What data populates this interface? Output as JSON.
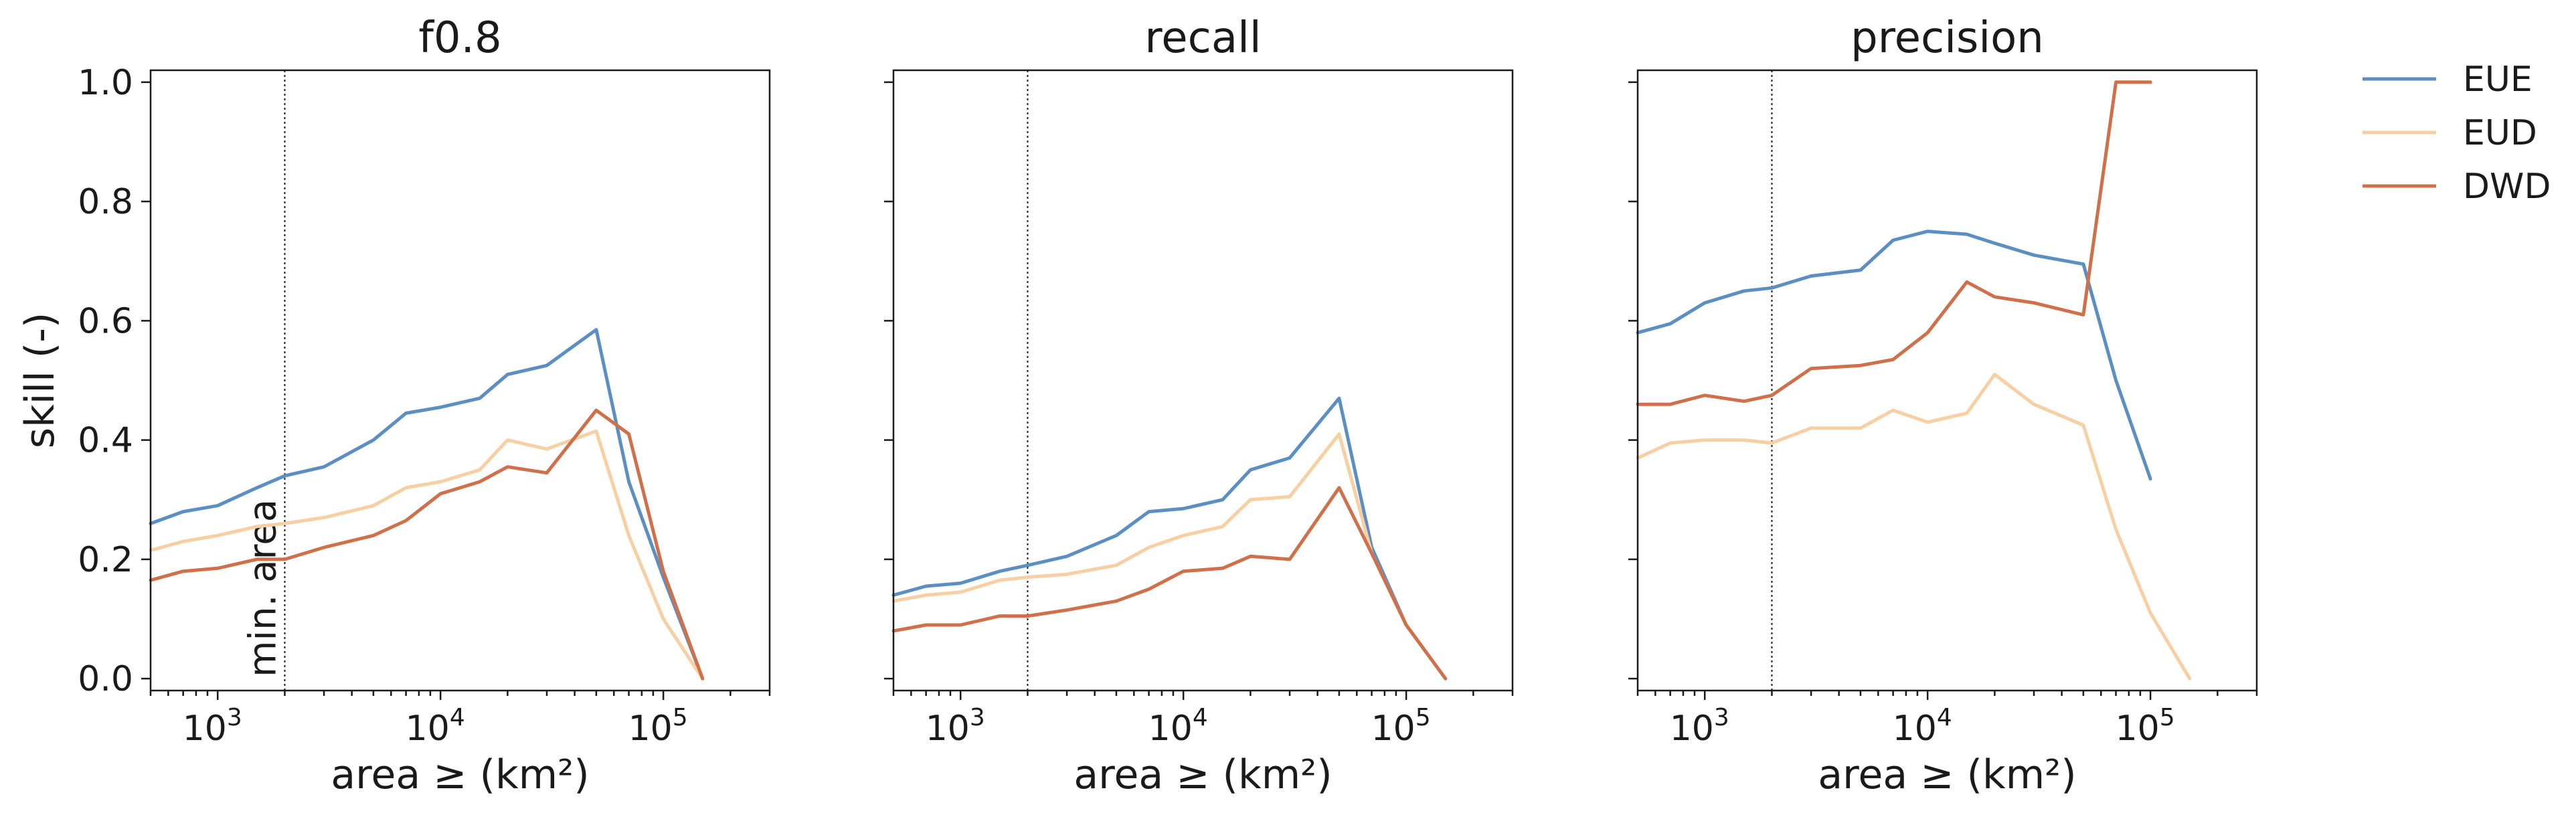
{
  "chart_data": [
    {
      "type": "line",
      "title": "f0.8",
      "xlabel": "area ≥ (km²)",
      "ylabel": "skill (-)",
      "xscale": "log",
      "xlim": [
        500,
        300000
      ],
      "ylim": [
        -0.02,
        1.02
      ],
      "yticks": [
        "0.0",
        "0.2",
        "0.4",
        "0.6",
        "0.8",
        "1.0"
      ],
      "xticks": [
        {
          "value": 1000,
          "base": "10",
          "exp": "3"
        },
        {
          "value": 10000,
          "base": "10",
          "exp": "4"
        },
        {
          "value": 100000,
          "base": "10",
          "exp": "5"
        }
      ],
      "vline": {
        "x": 2000,
        "label": "min. area"
      },
      "series": [
        {
          "name": "EUE",
          "color": "#5b8fc3",
          "x": [
            500,
            700,
            1000,
            1500,
            2000,
            3000,
            5000,
            7000,
            10000,
            15000,
            20000,
            30000,
            50000,
            70000,
            100000,
            150000
          ],
          "values": [
            0.26,
            0.28,
            0.29,
            0.32,
            0.34,
            0.355,
            0.4,
            0.445,
            0.455,
            0.47,
            0.51,
            0.525,
            0.585,
            0.33,
            0.17,
            0.0
          ]
        },
        {
          "name": "EUD",
          "color": "#f8cfa2",
          "x": [
            500,
            700,
            1000,
            1500,
            2000,
            3000,
            5000,
            7000,
            10000,
            15000,
            20000,
            30000,
            50000,
            70000,
            100000,
            150000
          ],
          "values": [
            0.215,
            0.23,
            0.24,
            0.255,
            0.26,
            0.27,
            0.29,
            0.32,
            0.33,
            0.35,
            0.4,
            0.385,
            0.415,
            0.24,
            0.1,
            0.0
          ]
        },
        {
          "name": "DWD",
          "color": "#d0704a",
          "x": [
            500,
            700,
            1000,
            1500,
            2000,
            3000,
            5000,
            7000,
            10000,
            15000,
            20000,
            30000,
            50000,
            70000,
            100000,
            150000
          ],
          "values": [
            0.165,
            0.18,
            0.185,
            0.2,
            0.2,
            0.22,
            0.24,
            0.265,
            0.31,
            0.33,
            0.355,
            0.345,
            0.45,
            0.41,
            0.18,
            0.0
          ]
        }
      ]
    },
    {
      "type": "line",
      "title": "recall",
      "xlabel": "area ≥ (km²)",
      "ylabel": "",
      "xscale": "log",
      "xlim": [
        500,
        300000
      ],
      "ylim": [
        -0.02,
        1.02
      ],
      "yticks": [
        "",
        "",
        "",
        "",
        "",
        ""
      ],
      "xticks": [
        {
          "value": 1000,
          "base": "10",
          "exp": "3"
        },
        {
          "value": 10000,
          "base": "10",
          "exp": "4"
        },
        {
          "value": 100000,
          "base": "10",
          "exp": "5"
        }
      ],
      "vline": {
        "x": 2000,
        "label": ""
      },
      "series": [
        {
          "name": "EUE",
          "color": "#5b8fc3",
          "x": [
            500,
            700,
            1000,
            1500,
            2000,
            3000,
            5000,
            7000,
            10000,
            15000,
            20000,
            30000,
            50000,
            70000,
            100000,
            150000
          ],
          "values": [
            0.14,
            0.155,
            0.16,
            0.18,
            0.19,
            0.205,
            0.24,
            0.28,
            0.285,
            0.3,
            0.35,
            0.37,
            0.47,
            0.22,
            0.09,
            0.0
          ]
        },
        {
          "name": "EUD",
          "color": "#f8cfa2",
          "x": [
            500,
            700,
            1000,
            1500,
            2000,
            3000,
            5000,
            7000,
            10000,
            15000,
            20000,
            30000,
            50000,
            70000,
            100000,
            150000
          ],
          "values": [
            0.13,
            0.14,
            0.145,
            0.165,
            0.17,
            0.175,
            0.19,
            0.22,
            0.24,
            0.255,
            0.3,
            0.305,
            0.41,
            0.21,
            0.09,
            0.0
          ]
        },
        {
          "name": "DWD",
          "color": "#d0704a",
          "x": [
            500,
            700,
            1000,
            1500,
            2000,
            3000,
            5000,
            7000,
            10000,
            15000,
            20000,
            30000,
            50000,
            70000,
            100000,
            150000
          ],
          "values": [
            0.08,
            0.09,
            0.09,
            0.105,
            0.105,
            0.115,
            0.13,
            0.15,
            0.18,
            0.185,
            0.205,
            0.2,
            0.32,
            0.21,
            0.09,
            0.0
          ]
        }
      ]
    },
    {
      "type": "line",
      "title": "precision",
      "xlabel": "area ≥ (km²)",
      "ylabel": "",
      "xscale": "log",
      "xlim": [
        500,
        300000
      ],
      "ylim": [
        -0.02,
        1.02
      ],
      "yticks": [
        "",
        "",
        "",
        "",
        "",
        ""
      ],
      "xticks": [
        {
          "value": 1000,
          "base": "10",
          "exp": "3"
        },
        {
          "value": 10000,
          "base": "10",
          "exp": "4"
        },
        {
          "value": 100000,
          "base": "10",
          "exp": "5"
        }
      ],
      "vline": {
        "x": 2000,
        "label": ""
      },
      "series": [
        {
          "name": "EUE",
          "color": "#5b8fc3",
          "x": [
            500,
            700,
            1000,
            1500,
            2000,
            3000,
            5000,
            7000,
            10000,
            15000,
            20000,
            30000,
            50000,
            70000,
            100000
          ],
          "values": [
            0.58,
            0.595,
            0.63,
            0.65,
            0.655,
            0.675,
            0.685,
            0.735,
            0.75,
            0.745,
            0.73,
            0.71,
            0.695,
            0.5,
            0.335
          ]
        },
        {
          "name": "EUD",
          "color": "#f8cfa2",
          "x": [
            500,
            700,
            1000,
            1500,
            2000,
            3000,
            5000,
            7000,
            10000,
            15000,
            20000,
            30000,
            50000,
            70000,
            100000,
            150000
          ],
          "values": [
            0.37,
            0.395,
            0.4,
            0.4,
            0.395,
            0.42,
            0.42,
            0.45,
            0.43,
            0.445,
            0.51,
            0.46,
            0.425,
            0.25,
            0.11,
            0.0
          ]
        },
        {
          "name": "DWD",
          "color": "#d0704a",
          "x": [
            500,
            700,
            1000,
            1500,
            2000,
            3000,
            5000,
            7000,
            10000,
            15000,
            20000,
            30000,
            50000,
            70000,
            100000
          ],
          "values": [
            0.46,
            0.46,
            0.475,
            0.465,
            0.475,
            0.52,
            0.525,
            0.535,
            0.58,
            0.665,
            0.64,
            0.63,
            0.61,
            1.0,
            1.0
          ]
        }
      ]
    }
  ],
  "legend": {
    "position": "outside-right-top",
    "entries": [
      {
        "label": "EUE",
        "color": "#5b8fc3"
      },
      {
        "label": "EUD",
        "color": "#f8cfa2"
      },
      {
        "label": "DWD",
        "color": "#d0704a"
      }
    ]
  }
}
